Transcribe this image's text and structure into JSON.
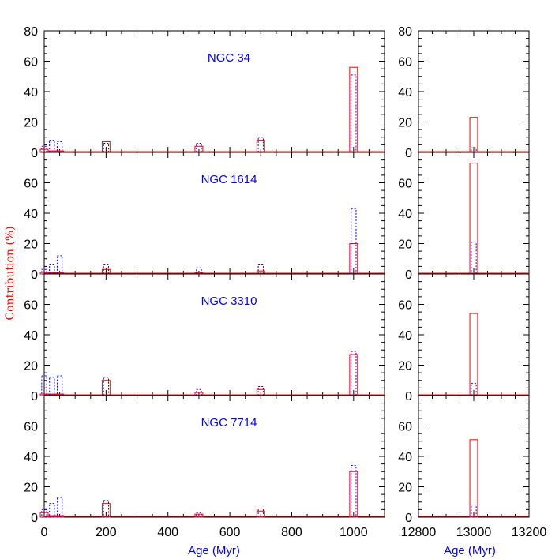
{
  "colors": {
    "red": "#ff0000",
    "blue": "#0000ff",
    "axis": "#000000"
  },
  "chart_data": {
    "type": "bar",
    "ylabel": "Contribution (%)",
    "legend": "none",
    "grid": false,
    "left_axis": {
      "xlabel": "Age (Myr)",
      "xlim": [
        0,
        1100
      ],
      "xticks": [
        "0",
        "200",
        "400",
        "600",
        "800",
        "1000"
      ]
    },
    "right_axis": {
      "xlabel": "Age (Myr)",
      "xlim": [
        12800,
        13200
      ],
      "xticks": [
        "12800",
        "13000",
        "13200"
      ]
    },
    "ylim": [
      0,
      80
    ],
    "bar_width": 18,
    "panels": [
      {
        "title": "NGC 34",
        "yticks": [
          "0",
          "20",
          "40",
          "60",
          "80"
        ],
        "series": [
          {
            "style": "solid-red",
            "points": [
              [
                0,
                2
              ],
              [
                25,
                1
              ],
              [
                50,
                1
              ],
              [
                200,
                7
              ],
              [
                500,
                4
              ],
              [
                700,
                8
              ],
              [
                1000,
                56
              ],
              [
                13000,
                23
              ]
            ]
          },
          {
            "style": "dotted-blue",
            "points": [
              [
                0,
                4
              ],
              [
                25,
                8
              ],
              [
                50,
                7
              ],
              [
                200,
                6
              ],
              [
                500,
                6
              ],
              [
                700,
                10
              ],
              [
                1000,
                51
              ],
              [
                13000,
                3
              ]
            ]
          }
        ]
      },
      {
        "title": "NGC 1614",
        "yticks": [
          "0",
          "20",
          "40",
          "60"
        ],
        "series": [
          {
            "style": "solid-red",
            "points": [
              [
                0,
                1
              ],
              [
                25,
                1
              ],
              [
                50,
                1
              ],
              [
                200,
                3
              ],
              [
                500,
                1
              ],
              [
                700,
                2
              ],
              [
                1000,
                20
              ],
              [
                13000,
                73
              ]
            ]
          },
          {
            "style": "dotted-blue",
            "points": [
              [
                0,
                3
              ],
              [
                25,
                6
              ],
              [
                50,
                12
              ],
              [
                200,
                6
              ],
              [
                500,
                4
              ],
              [
                700,
                6
              ],
              [
                1000,
                43
              ],
              [
                13000,
                21
              ]
            ]
          }
        ]
      },
      {
        "title": "NGC 3310",
        "yticks": [
          "0",
          "20",
          "40",
          "60"
        ],
        "series": [
          {
            "style": "solid-red",
            "points": [
              [
                0,
                1
              ],
              [
                25,
                1
              ],
              [
                50,
                1
              ],
              [
                200,
                10
              ],
              [
                500,
                2
              ],
              [
                700,
                4
              ],
              [
                1000,
                27
              ],
              [
                13000,
                54
              ]
            ]
          },
          {
            "style": "dotted-blue",
            "points": [
              [
                0,
                13
              ],
              [
                25,
                12
              ],
              [
                50,
                13
              ],
              [
                200,
                12
              ],
              [
                500,
                4
              ],
              [
                700,
                6
              ],
              [
                1000,
                29
              ],
              [
                13000,
                8
              ]
            ]
          }
        ]
      },
      {
        "title": "NGC 7714",
        "yticks": [
          "0",
          "20",
          "40",
          "60"
        ],
        "series": [
          {
            "style": "solid-red",
            "points": [
              [
                0,
                3
              ],
              [
                25,
                1
              ],
              [
                50,
                1
              ],
              [
                200,
                9
              ],
              [
                500,
                2
              ],
              [
                700,
                4
              ],
              [
                1000,
                30
              ],
              [
                13000,
                51
              ]
            ]
          },
          {
            "style": "dotted-blue",
            "points": [
              [
                0,
                5
              ],
              [
                25,
                9
              ],
              [
                50,
                13
              ],
              [
                200,
                11
              ],
              [
                500,
                3
              ],
              [
                700,
                6
              ],
              [
                1000,
                34
              ],
              [
                13000,
                8
              ]
            ]
          }
        ]
      }
    ]
  }
}
